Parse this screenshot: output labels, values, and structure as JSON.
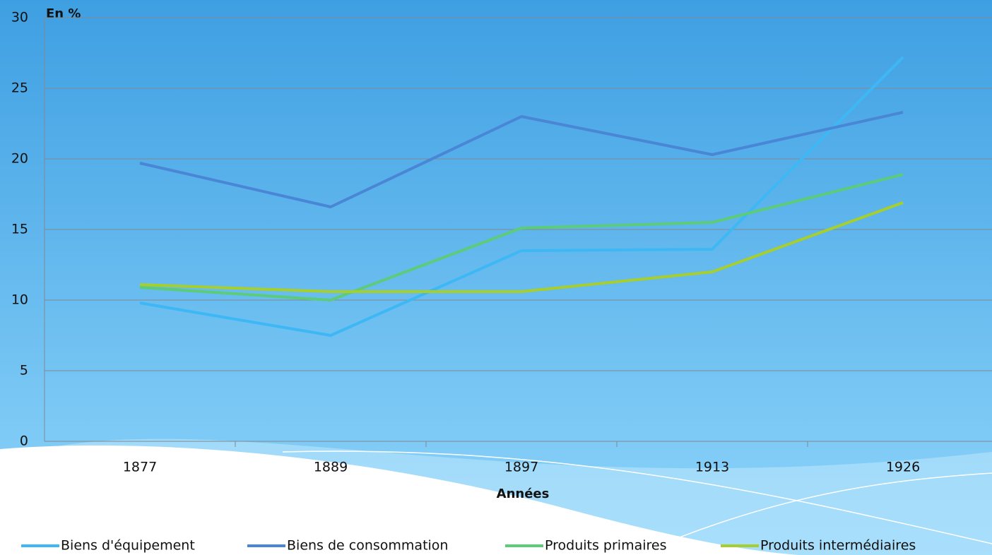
{
  "chart_data": {
    "type": "line",
    "y_label": "En %",
    "x_label": "Années",
    "categories": [
      "1877",
      "1889",
      "1897",
      "1913",
      "1926"
    ],
    "series": [
      {
        "name": "Biens d'équipement",
        "color": "#3db8f5",
        "values": [
          9.8,
          7.5,
          13.5,
          13.6,
          27.2
        ]
      },
      {
        "name": "Biens de consommation",
        "color": "#4a86d6",
        "values": [
          19.7,
          16.6,
          23.0,
          20.3,
          23.3
        ]
      },
      {
        "name": "Produits primaires",
        "color": "#5ccc7a",
        "values": [
          10.9,
          10.0,
          15.1,
          15.5,
          18.9
        ]
      },
      {
        "name": "Produits intermédiaires",
        "color": "#a6cf2e",
        "values": [
          11.1,
          10.6,
          10.6,
          12.0,
          16.9
        ]
      }
    ],
    "ylim": [
      0,
      30
    ],
    "yticks": [
      0,
      5,
      10,
      15,
      20,
      25,
      30
    ],
    "grid": true,
    "legend": "bottom"
  }
}
